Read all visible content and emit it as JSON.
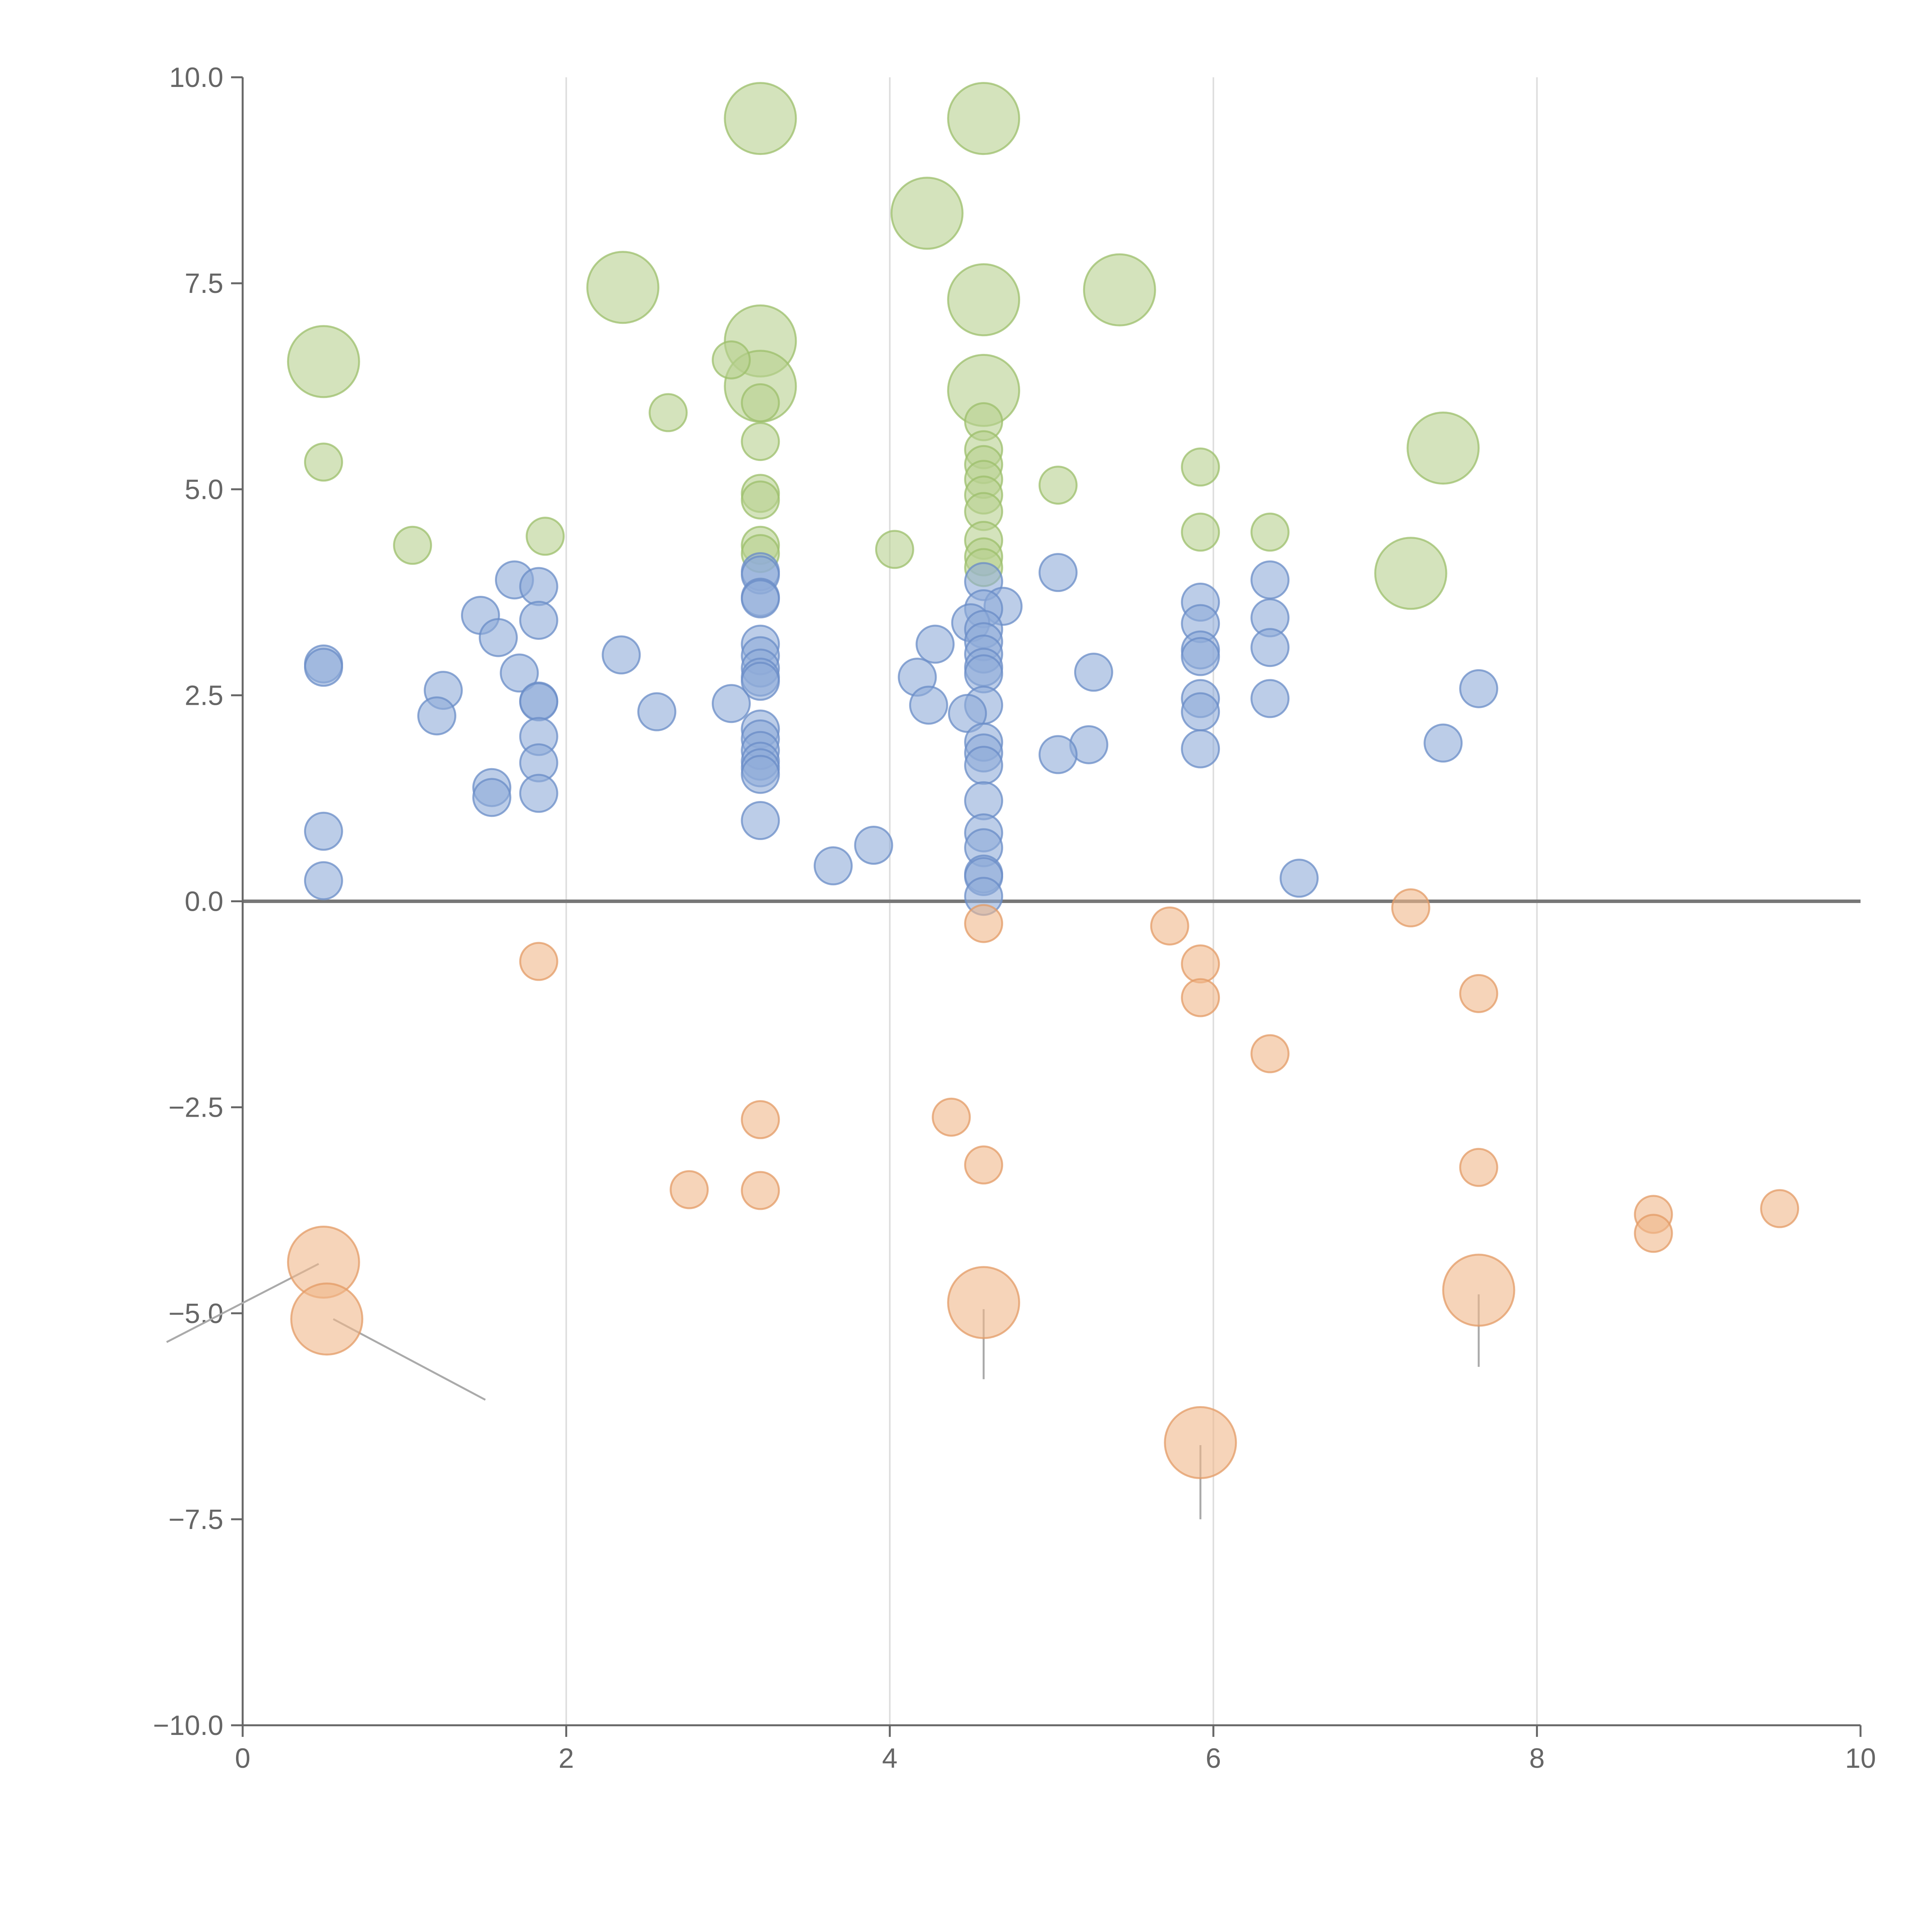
{
  "chart_data": {
    "type": "scatter",
    "title": "",
    "xlabel": "",
    "ylabel": "",
    "xlim": [
      0,
      10
    ],
    "ylim": [
      -10,
      10
    ],
    "grid": "vertical lines at x = 2, 4, 6, 8",
    "x_ticks": [
      {
        "value": 0,
        "label": "0"
      },
      {
        "value": 2,
        "label": "2"
      },
      {
        "value": 4,
        "label": "4"
      },
      {
        "value": 6,
        "label": "6"
      },
      {
        "value": 8,
        "label": "8"
      },
      {
        "value": 10,
        "label": "10"
      }
    ],
    "y_ticks": [
      {
        "value": 10,
        "label": "10.0"
      },
      {
        "value": 7.5,
        "label": "7.5"
      },
      {
        "value": 5,
        "label": "5.0"
      },
      {
        "value": 2.5,
        "label": "2.5"
      },
      {
        "value": 0,
        "label": "0.0"
      },
      {
        "value": -2.5,
        "label": "−2.5"
      },
      {
        "value": -5,
        "label": "−5.0"
      },
      {
        "value": -7.5,
        "label": "−7.5"
      },
      {
        "value": -10,
        "label": "−10.0"
      }
    ],
    "series": [
      {
        "name": "green",
        "fill": "#b7d18f",
        "stroke": "#9cbf6b",
        "points": [
          {
            "x": 3.2,
            "y": 9.5,
            "size": 3
          },
          {
            "x": 4.58,
            "y": 9.5,
            "size": 3
          },
          {
            "x": 4.23,
            "y": 8.35,
            "size": 3
          },
          {
            "x": 2.35,
            "y": 7.45,
            "size": 3
          },
          {
            "x": 5.42,
            "y": 7.42,
            "size": 3
          },
          {
            "x": 4.58,
            "y": 7.3,
            "size": 3
          },
          {
            "x": 3.2,
            "y": 6.8,
            "size": 3
          },
          {
            "x": 0.5,
            "y": 6.55,
            "size": 3
          },
          {
            "x": 3.2,
            "y": 6.25,
            "size": 3
          },
          {
            "x": 4.58,
            "y": 6.2,
            "size": 3
          },
          {
            "x": 7.42,
            "y": 5.5,
            "size": 3
          },
          {
            "x": 7.22,
            "y": 3.98,
            "size": 3
          },
          {
            "x": 3.02,
            "y": 6.57,
            "size": 1
          },
          {
            "x": 2.63,
            "y": 5.93,
            "size": 1
          },
          {
            "x": 3.2,
            "y": 6.05,
            "size": 1
          },
          {
            "x": 4.58,
            "y": 5.82,
            "size": 1
          },
          {
            "x": 3.2,
            "y": 5.58,
            "size": 1
          },
          {
            "x": 4.58,
            "y": 5.48,
            "size": 1
          },
          {
            "x": 0.5,
            "y": 5.33,
            "size": 1
          },
          {
            "x": 4.58,
            "y": 5.3,
            "size": 1
          },
          {
            "x": 5.92,
            "y": 5.27,
            "size": 1
          },
          {
            "x": 4.58,
            "y": 5.12,
            "size": 1
          },
          {
            "x": 5.04,
            "y": 5.05,
            "size": 1
          },
          {
            "x": 4.58,
            "y": 4.93,
            "size": 1
          },
          {
            "x": 3.2,
            "y": 4.95,
            "size": 1
          },
          {
            "x": 3.2,
            "y": 4.87,
            "size": 1
          },
          {
            "x": 4.58,
            "y": 4.73,
            "size": 1
          },
          {
            "x": 5.92,
            "y": 4.48,
            "size": 1
          },
          {
            "x": 6.35,
            "y": 4.48,
            "size": 1
          },
          {
            "x": 1.87,
            "y": 4.43,
            "size": 1
          },
          {
            "x": 4.58,
            "y": 4.38,
            "size": 1
          },
          {
            "x": 1.05,
            "y": 4.32,
            "size": 1
          },
          {
            "x": 3.2,
            "y": 4.32,
            "size": 1
          },
          {
            "x": 4.03,
            "y": 4.27,
            "size": 1
          },
          {
            "x": 3.2,
            "y": 4.22,
            "size": 1
          },
          {
            "x": 4.58,
            "y": 4.18,
            "size": 1
          },
          {
            "x": 4.58,
            "y": 4.05,
            "size": 1
          }
        ]
      },
      {
        "name": "blue",
        "fill": "#8fabd8",
        "stroke": "#6a8cc7",
        "points": [
          {
            "x": 3.2,
            "y": 4.0
          },
          {
            "x": 3.2,
            "y": 3.96
          },
          {
            "x": 5.04,
            "y": 3.99
          },
          {
            "x": 1.68,
            "y": 3.9
          },
          {
            "x": 6.35,
            "y": 3.9
          },
          {
            "x": 4.58,
            "y": 3.88
          },
          {
            "x": 1.83,
            "y": 3.82
          },
          {
            "x": 3.2,
            "y": 3.69
          },
          {
            "x": 3.2,
            "y": 3.67
          },
          {
            "x": 5.92,
            "y": 3.63
          },
          {
            "x": 4.7,
            "y": 3.58
          },
          {
            "x": 4.58,
            "y": 3.55
          },
          {
            "x": 1.47,
            "y": 3.47
          },
          {
            "x": 6.35,
            "y": 3.44
          },
          {
            "x": 1.83,
            "y": 3.41
          },
          {
            "x": 4.5,
            "y": 3.38
          },
          {
            "x": 5.92,
            "y": 3.37
          },
          {
            "x": 4.58,
            "y": 3.3
          },
          {
            "x": 1.58,
            "y": 3.2
          },
          {
            "x": 4.58,
            "y": 3.15
          },
          {
            "x": 4.28,
            "y": 3.12
          },
          {
            "x": 3.2,
            "y": 3.12
          },
          {
            "x": 6.35,
            "y": 3.08
          },
          {
            "x": 5.92,
            "y": 3.05
          },
          {
            "x": 4.58,
            "y": 3.0
          },
          {
            "x": 2.34,
            "y": 2.99
          },
          {
            "x": 3.2,
            "y": 2.98
          },
          {
            "x": 5.92,
            "y": 2.97
          },
          {
            "x": 0.5,
            "y": 2.88
          },
          {
            "x": 0.5,
            "y": 2.84
          },
          {
            "x": 4.58,
            "y": 2.84
          },
          {
            "x": 3.2,
            "y": 2.83
          },
          {
            "x": 5.26,
            "y": 2.78
          },
          {
            "x": 1.71,
            "y": 2.77
          },
          {
            "x": 4.58,
            "y": 2.76
          },
          {
            "x": 3.2,
            "y": 2.72
          },
          {
            "x": 4.17,
            "y": 2.72
          },
          {
            "x": 3.2,
            "y": 2.67
          },
          {
            "x": 1.24,
            "y": 2.56
          },
          {
            "x": 7.64,
            "y": 2.58
          },
          {
            "x": 6.35,
            "y": 2.46
          },
          {
            "x": 5.92,
            "y": 2.46
          },
          {
            "x": 1.83,
            "y": 2.43
          },
          {
            "x": 1.83,
            "y": 2.42
          },
          {
            "x": 3.02,
            "y": 2.4
          },
          {
            "x": 4.58,
            "y": 2.38
          },
          {
            "x": 4.24,
            "y": 2.38
          },
          {
            "x": 2.56,
            "y": 2.3
          },
          {
            "x": 5.92,
            "y": 2.3
          },
          {
            "x": 4.48,
            "y": 2.28
          },
          {
            "x": 1.2,
            "y": 2.25
          },
          {
            "x": 3.2,
            "y": 2.09
          },
          {
            "x": 1.83,
            "y": 2.0
          },
          {
            "x": 3.2,
            "y": 1.97
          },
          {
            "x": 7.42,
            "y": 1.92
          },
          {
            "x": 4.58,
            "y": 1.93
          },
          {
            "x": 5.23,
            "y": 1.9
          },
          {
            "x": 5.92,
            "y": 1.85
          },
          {
            "x": 3.2,
            "y": 1.83
          },
          {
            "x": 4.58,
            "y": 1.8
          },
          {
            "x": 5.04,
            "y": 1.78
          },
          {
            "x": 1.83,
            "y": 1.68
          },
          {
            "x": 3.2,
            "y": 1.7
          },
          {
            "x": 3.2,
            "y": 1.62
          },
          {
            "x": 4.58,
            "y": 1.65
          },
          {
            "x": 3.2,
            "y": 1.54
          },
          {
            "x": 1.54,
            "y": 1.38
          },
          {
            "x": 1.83,
            "y": 1.31
          },
          {
            "x": 1.54,
            "y": 1.26
          },
          {
            "x": 4.58,
            "y": 1.22
          },
          {
            "x": 3.2,
            "y": 0.98
          },
          {
            "x": 0.5,
            "y": 0.85
          },
          {
            "x": 4.58,
            "y": 0.83
          },
          {
            "x": 3.9,
            "y": 0.68
          },
          {
            "x": 4.58,
            "y": 0.65
          },
          {
            "x": 3.65,
            "y": 0.43
          },
          {
            "x": 4.58,
            "y": 0.33
          },
          {
            "x": 4.58,
            "y": 0.3
          },
          {
            "x": 6.53,
            "y": 0.28
          },
          {
            "x": 0.5,
            "y": 0.25
          },
          {
            "x": 4.58,
            "y": 0.06
          }
        ]
      },
      {
        "name": "orange",
        "fill": "#f0b78b",
        "stroke": "#e39b66",
        "points": [
          {
            "x": 4.58,
            "y": -0.27,
            "size": 1
          },
          {
            "x": 7.22,
            "y": -0.08,
            "size": 1
          },
          {
            "x": 5.73,
            "y": -0.3,
            "size": 1
          },
          {
            "x": 1.83,
            "y": -0.73,
            "size": 1
          },
          {
            "x": 5.92,
            "y": -0.76,
            "size": 1
          },
          {
            "x": 7.64,
            "y": -1.12,
            "size": 1
          },
          {
            "x": 5.92,
            "y": -1.17,
            "size": 1
          },
          {
            "x": 6.35,
            "y": -1.85,
            "size": 1
          },
          {
            "x": 4.38,
            "y": -2.62,
            "size": 1
          },
          {
            "x": 3.2,
            "y": -2.65,
            "size": 1
          },
          {
            "x": 4.58,
            "y": -3.2,
            "size": 1
          },
          {
            "x": 7.64,
            "y": -3.23,
            "size": 1
          },
          {
            "x": 2.76,
            "y": -3.5,
            "size": 1
          },
          {
            "x": 3.2,
            "y": -3.51,
            "size": 1
          },
          {
            "x": 8.72,
            "y": -3.8,
            "size": 1
          },
          {
            "x": 9.5,
            "y": -3.73,
            "size": 1
          },
          {
            "x": 8.72,
            "y": -4.03,
            "size": 1
          },
          {
            "x": 0.5,
            "y": -4.38,
            "size": 3
          },
          {
            "x": 7.64,
            "y": -4.72,
            "size": 3
          },
          {
            "x": 4.58,
            "y": -4.87,
            "size": 3
          },
          {
            "x": 0.52,
            "y": -5.07,
            "size": 3
          },
          {
            "x": 5.92,
            "y": -6.57,
            "size": 3
          }
        ]
      }
    ],
    "leader_lines": [
      {
        "from": [
          0.47,
          -4.4
        ],
        "to": [
          -0.47,
          -5.35
        ]
      },
      {
        "from": [
          0.56,
          -5.07
        ],
        "to": [
          1.5,
          -6.05
        ]
      },
      {
        "from": [
          4.58,
          -4.95
        ],
        "to": [
          4.58,
          -5.8
        ]
      },
      {
        "from": [
          7.64,
          -4.77
        ],
        "to": [
          7.64,
          -5.65
        ]
      },
      {
        "from": [
          5.92,
          -6.6
        ],
        "to": [
          5.92,
          -7.5
        ]
      }
    ],
    "legend": "none"
  }
}
